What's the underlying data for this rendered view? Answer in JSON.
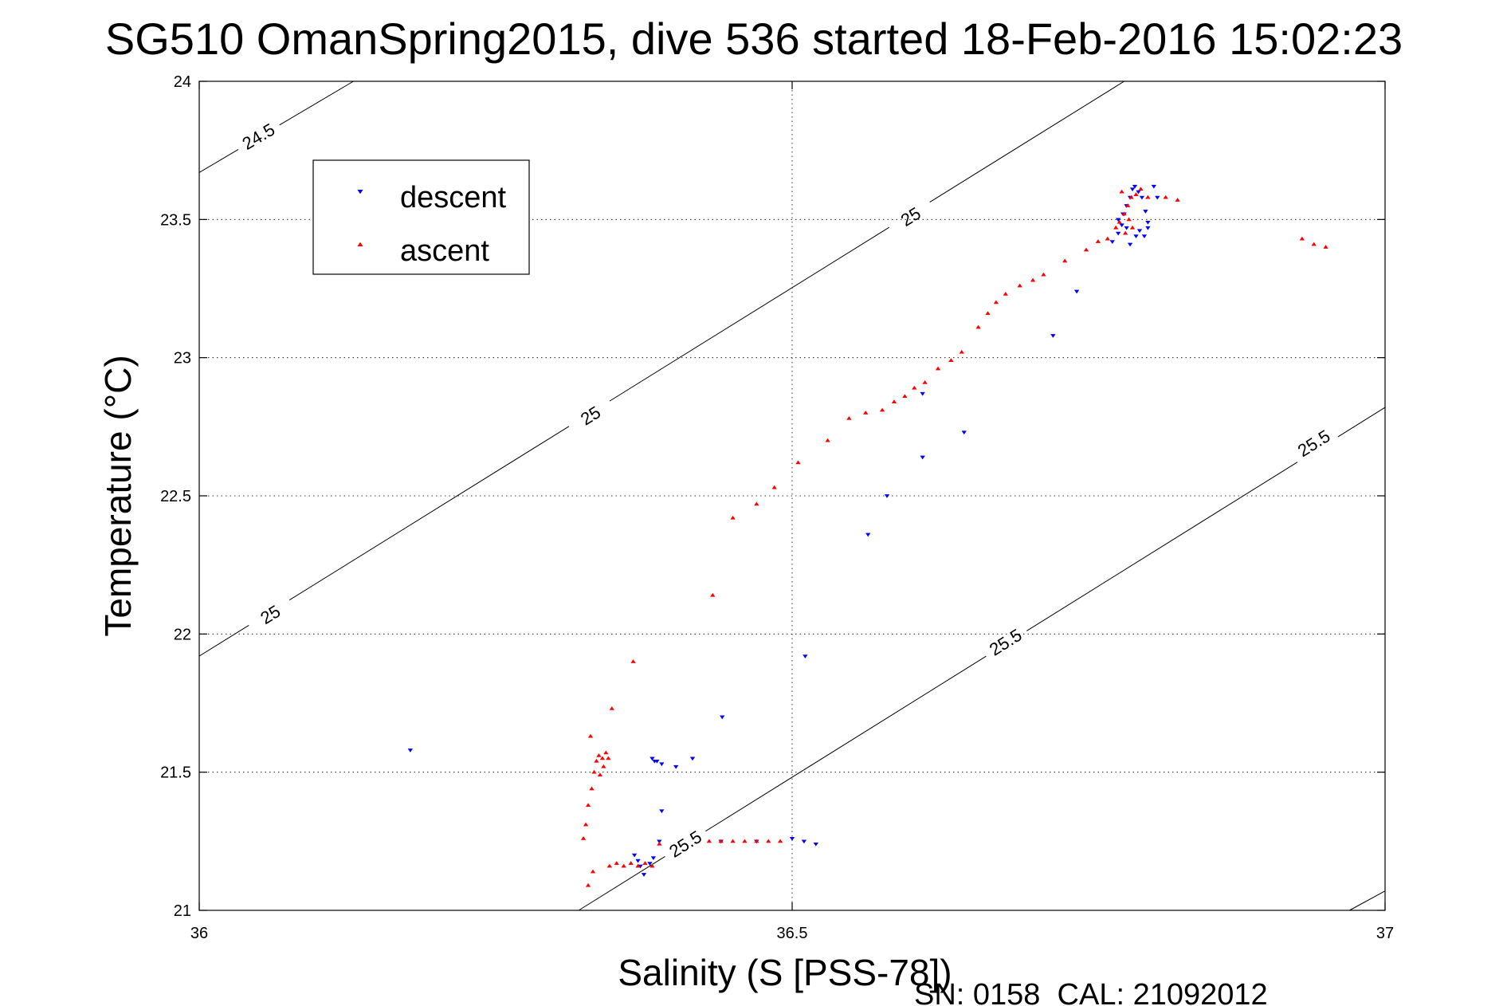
{
  "chart_data": {
    "type": "scatter",
    "title": "SG510 OmanSpring2015, dive 536 started 18-Feb-2016 15:02:23",
    "xlabel": "Salinity (S [PSS-78])",
    "ylabel": "Temperature (°C)",
    "xlim": [
      36,
      37
    ],
    "ylim": [
      21,
      24
    ],
    "xticks": [
      36,
      36.5,
      37
    ],
    "yticks": [
      21,
      21.5,
      22,
      22.5,
      23,
      23.5,
      24
    ],
    "x_tick_labels": [
      "36",
      "36.5",
      "37"
    ],
    "y_tick_labels": [
      "21",
      "21.5",
      "22",
      "22.5",
      "23",
      "23.5",
      "24"
    ],
    "grid": "dotted",
    "legend_position": "top-left",
    "footer": "SN: 0158  CAL: 21092012",
    "contours": [
      {
        "label": "24.5",
        "points": [
          [
            36,
            23.67
          ],
          [
            36.13,
            24
          ]
        ],
        "label_positions": [
          [
            36.05,
            23.8
          ]
        ]
      },
      {
        "label": "25",
        "points": [
          [
            36,
            21.92
          ],
          [
            36.78,
            24
          ]
        ],
        "label_positions": [
          [
            36.06,
            22.07
          ],
          [
            36.33,
            22.79
          ],
          [
            36.6,
            23.51
          ]
        ]
      },
      {
        "label": "25.5",
        "points": [
          [
            36.32,
            21
          ],
          [
            37,
            22.82
          ]
        ],
        "label_positions": [
          [
            36.41,
            21.24
          ],
          [
            36.68,
            21.97
          ],
          [
            36.94,
            22.69
          ]
        ]
      },
      {
        "label": "",
        "points": [
          [
            36.97,
            21
          ],
          [
            37,
            21.07
          ]
        ],
        "label_positions": []
      }
    ],
    "series": [
      {
        "name": "descent",
        "color": "#0000ff",
        "marker": "triangle-down",
        "points": [
          [
            36.178,
            21.58
          ],
          [
            36.367,
            21.2
          ],
          [
            36.37,
            21.18
          ],
          [
            36.372,
            21.16
          ],
          [
            36.375,
            21.13
          ],
          [
            36.38,
            21.17
          ],
          [
            36.383,
            21.19
          ],
          [
            36.388,
            21.25
          ],
          [
            36.39,
            21.36
          ],
          [
            36.382,
            21.55
          ],
          [
            36.384,
            21.54
          ],
          [
            36.386,
            21.54
          ],
          [
            36.39,
            21.53
          ],
          [
            36.402,
            21.52
          ],
          [
            36.416,
            21.55
          ],
          [
            36.441,
            21.7
          ],
          [
            36.44,
            21.25
          ],
          [
            36.47,
            21.25
          ],
          [
            36.5,
            21.26
          ],
          [
            36.51,
            21.25
          ],
          [
            36.52,
            21.24
          ],
          [
            36.511,
            21.92
          ],
          [
            36.564,
            22.36
          ],
          [
            36.58,
            22.5
          ],
          [
            36.61,
            22.64
          ],
          [
            36.61,
            22.87
          ],
          [
            36.645,
            22.73
          ],
          [
            36.72,
            23.08
          ],
          [
            36.74,
            23.24
          ],
          [
            36.77,
            23.42
          ],
          [
            36.775,
            23.45
          ],
          [
            36.778,
            23.48
          ],
          [
            36.78,
            23.52
          ],
          [
            36.782,
            23.55
          ],
          [
            36.785,
            23.58
          ],
          [
            36.787,
            23.61
          ],
          [
            36.789,
            23.62
          ],
          [
            36.792,
            23.6
          ],
          [
            36.795,
            23.58
          ],
          [
            36.798,
            23.53
          ],
          [
            36.8,
            23.49
          ],
          [
            36.79,
            23.44
          ],
          [
            36.785,
            23.41
          ],
          [
            36.775,
            23.5
          ],
          [
            36.779,
            23.52
          ],
          [
            36.782,
            23.47
          ],
          [
            36.793,
            23.46
          ],
          [
            36.797,
            23.44
          ],
          [
            36.8,
            23.47
          ],
          [
            36.808,
            23.58
          ],
          [
            36.805,
            23.62
          ]
        ]
      },
      {
        "name": "ascent",
        "color": "#ff0000",
        "marker": "triangle-up",
        "points": [
          [
            36.328,
            21.09
          ],
          [
            36.332,
            21.14
          ],
          [
            36.324,
            21.26
          ],
          [
            36.326,
            21.31
          ],
          [
            36.328,
            21.38
          ],
          [
            36.331,
            21.44
          ],
          [
            36.333,
            21.5
          ],
          [
            36.335,
            21.54
          ],
          [
            36.337,
            21.56
          ],
          [
            36.34,
            21.55
          ],
          [
            36.343,
            21.57
          ],
          [
            36.345,
            21.55
          ],
          [
            36.341,
            21.52
          ],
          [
            36.338,
            21.49
          ],
          [
            36.33,
            21.63
          ],
          [
            36.348,
            21.73
          ],
          [
            36.366,
            21.9
          ],
          [
            36.346,
            21.16
          ],
          [
            36.352,
            21.17
          ],
          [
            36.358,
            21.16
          ],
          [
            36.364,
            21.17
          ],
          [
            36.37,
            21.16
          ],
          [
            36.376,
            21.17
          ],
          [
            36.382,
            21.16
          ],
          [
            36.388,
            21.24
          ],
          [
            36.43,
            21.25
          ],
          [
            36.44,
            21.25
          ],
          [
            36.45,
            21.25
          ],
          [
            36.46,
            21.25
          ],
          [
            36.47,
            21.25
          ],
          [
            36.48,
            21.25
          ],
          [
            36.49,
            21.25
          ],
          [
            36.433,
            22.14
          ],
          [
            36.45,
            22.42
          ],
          [
            36.47,
            22.47
          ],
          [
            36.485,
            22.53
          ],
          [
            36.505,
            22.62
          ],
          [
            36.53,
            22.7
          ],
          [
            36.548,
            22.78
          ],
          [
            36.562,
            22.8
          ],
          [
            36.576,
            22.81
          ],
          [
            36.586,
            22.84
          ],
          [
            36.595,
            22.86
          ],
          [
            36.603,
            22.89
          ],
          [
            36.612,
            22.91
          ],
          [
            36.623,
            22.96
          ],
          [
            36.634,
            22.99
          ],
          [
            36.643,
            23.02
          ],
          [
            36.657,
            23.11
          ],
          [
            36.665,
            23.16
          ],
          [
            36.672,
            23.2
          ],
          [
            36.68,
            23.23
          ],
          [
            36.692,
            23.26
          ],
          [
            36.703,
            23.28
          ],
          [
            36.712,
            23.3
          ],
          [
            36.73,
            23.35
          ],
          [
            36.748,
            23.39
          ],
          [
            36.758,
            23.42
          ],
          [
            36.766,
            23.43
          ],
          [
            36.773,
            23.47
          ],
          [
            36.776,
            23.49
          ],
          [
            36.78,
            23.52
          ],
          [
            36.783,
            23.55
          ],
          [
            36.786,
            23.58
          ],
          [
            36.79,
            23.59
          ],
          [
            36.794,
            23.61
          ],
          [
            36.778,
            23.6
          ],
          [
            36.781,
            23.45
          ],
          [
            36.784,
            23.5
          ],
          [
            36.787,
            23.47
          ],
          [
            36.8,
            23.58
          ],
          [
            36.815,
            23.58
          ],
          [
            36.825,
            23.57
          ],
          [
            36.93,
            23.43
          ],
          [
            36.94,
            23.41
          ],
          [
            36.95,
            23.4
          ]
        ]
      }
    ]
  }
}
